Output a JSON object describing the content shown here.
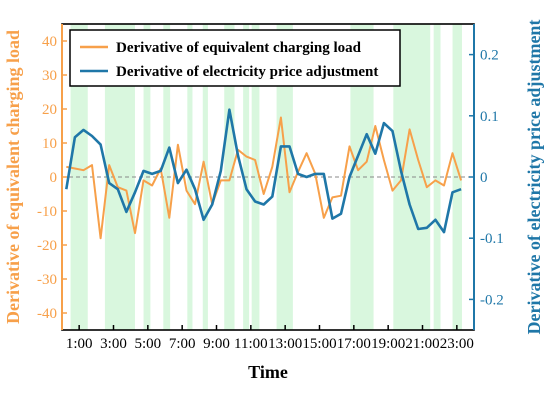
{
  "chart_data": {
    "type": "line",
    "xlabel": "Time",
    "ylabel_left": "Derivative of equivalent charging load",
    "ylabel_right": "Derivative of electricity price adjustment",
    "x_tick_labels": [
      "1:00",
      "3:00",
      "5:00",
      "7:00",
      "9:00",
      "11:00",
      "13:00",
      "15:00",
      "17:00",
      "19:00",
      "21:00",
      "23:00"
    ],
    "x_tick_values": [
      1,
      3,
      5,
      7,
      9,
      11,
      13,
      15,
      17,
      19,
      21,
      23
    ],
    "xlim": [
      0,
      24
    ],
    "ylim_left": [
      -45,
      45
    ],
    "ylim_right": [
      -0.25,
      0.25
    ],
    "left_ticks": [
      -40,
      -30,
      -20,
      -10,
      0,
      10,
      20,
      30,
      40
    ],
    "right_ticks": [
      -0.2,
      -0.1,
      0,
      0.1,
      0.2
    ],
    "right_tick_labels": [
      "-0.2",
      "-0.1",
      "0",
      "0.1",
      "0.2"
    ],
    "grid": false,
    "legend_position": "top-left",
    "zero_reference_line": true,
    "colors": {
      "load": "#F7A04A",
      "price": "#1F77A8",
      "band": "#D9F7DE",
      "left_axis": "#F7A04A",
      "right_axis": "#1F77A8"
    },
    "shaded_bands": [
      [
        0.5,
        1.5
      ],
      [
        2.5,
        4.25
      ],
      [
        4.75,
        5.15
      ],
      [
        5.9,
        6.3
      ],
      [
        7.3,
        7.6
      ],
      [
        8.2,
        8.5
      ],
      [
        9.45,
        10.05
      ],
      [
        10.55,
        10.9
      ],
      [
        11.05,
        11.5
      ],
      [
        12.5,
        13.45
      ],
      [
        16.8,
        18.15
      ],
      [
        19.3,
        21.45
      ],
      [
        21.65,
        22.05
      ],
      [
        22.75,
        23.3
      ]
    ],
    "series": [
      {
        "name": "Derivative of equivalent charging load",
        "axis": "left",
        "color": "#F7A04A",
        "x": [
          0.25,
          0.75,
          1.25,
          1.75,
          2.25,
          2.75,
          3.25,
          3.75,
          4.25,
          4.75,
          5.25,
          5.75,
          6.25,
          6.75,
          7.25,
          7.75,
          8.25,
          8.75,
          9.25,
          9.75,
          10.25,
          10.75,
          11.25,
          11.75,
          12.25,
          12.75,
          13.25,
          13.75,
          14.25,
          14.75,
          15.25,
          15.75,
          16.25,
          16.75,
          17.25,
          17.75,
          18.25,
          18.75,
          19.25,
          19.75,
          20.25,
          20.75,
          21.25,
          21.75,
          22.25,
          22.75,
          23.25
        ],
        "y": [
          3,
          2.5,
          2,
          3.5,
          -18,
          3.5,
          -3,
          -4,
          -16.5,
          -1,
          -2.5,
          2.5,
          -12,
          9.5,
          -4,
          -8,
          4.5,
          -8,
          -1,
          -1,
          8,
          6,
          5,
          -5,
          3,
          17.5,
          -4.5,
          1.5,
          7,
          1,
          -12,
          -6,
          -5.5,
          9,
          2,
          4.5,
          15,
          5,
          -4,
          -1,
          14,
          5,
          -3,
          -1,
          -2.5,
          7,
          -1
        ]
      },
      {
        "name": "Derivative of electricity price adjustment",
        "axis": "right",
        "color": "#1F77A8",
        "x": [
          0.25,
          0.75,
          1.25,
          1.75,
          2.25,
          2.75,
          3.25,
          3.75,
          4.25,
          4.75,
          5.25,
          5.75,
          6.25,
          6.75,
          7.25,
          7.75,
          8.25,
          8.75,
          9.25,
          9.75,
          10.25,
          10.75,
          11.25,
          11.75,
          12.25,
          12.75,
          13.25,
          13.75,
          14.25,
          14.75,
          15.25,
          15.75,
          16.25,
          16.75,
          17.25,
          17.75,
          18.25,
          18.75,
          19.25,
          19.75,
          20.25,
          20.75,
          21.25,
          21.75,
          22.25,
          22.75,
          23.25
        ],
        "y": [
          -0.02,
          0.065,
          0.077,
          0.067,
          0.053,
          -0.01,
          -0.02,
          -0.057,
          -0.025,
          0.01,
          0.005,
          0.01,
          0.048,
          -0.01,
          0.012,
          -0.02,
          -0.07,
          -0.045,
          0.01,
          0.11,
          0.035,
          -0.02,
          -0.04,
          -0.045,
          -0.032,
          0.05,
          0.05,
          0.005,
          0.0,
          0.005,
          0.005,
          -0.068,
          -0.06,
          0.0,
          0.035,
          0.07,
          0.038,
          0.088,
          0.075,
          0.01,
          -0.045,
          -0.085,
          -0.083,
          -0.07,
          -0.09,
          -0.025,
          -0.02
        ]
      }
    ]
  }
}
